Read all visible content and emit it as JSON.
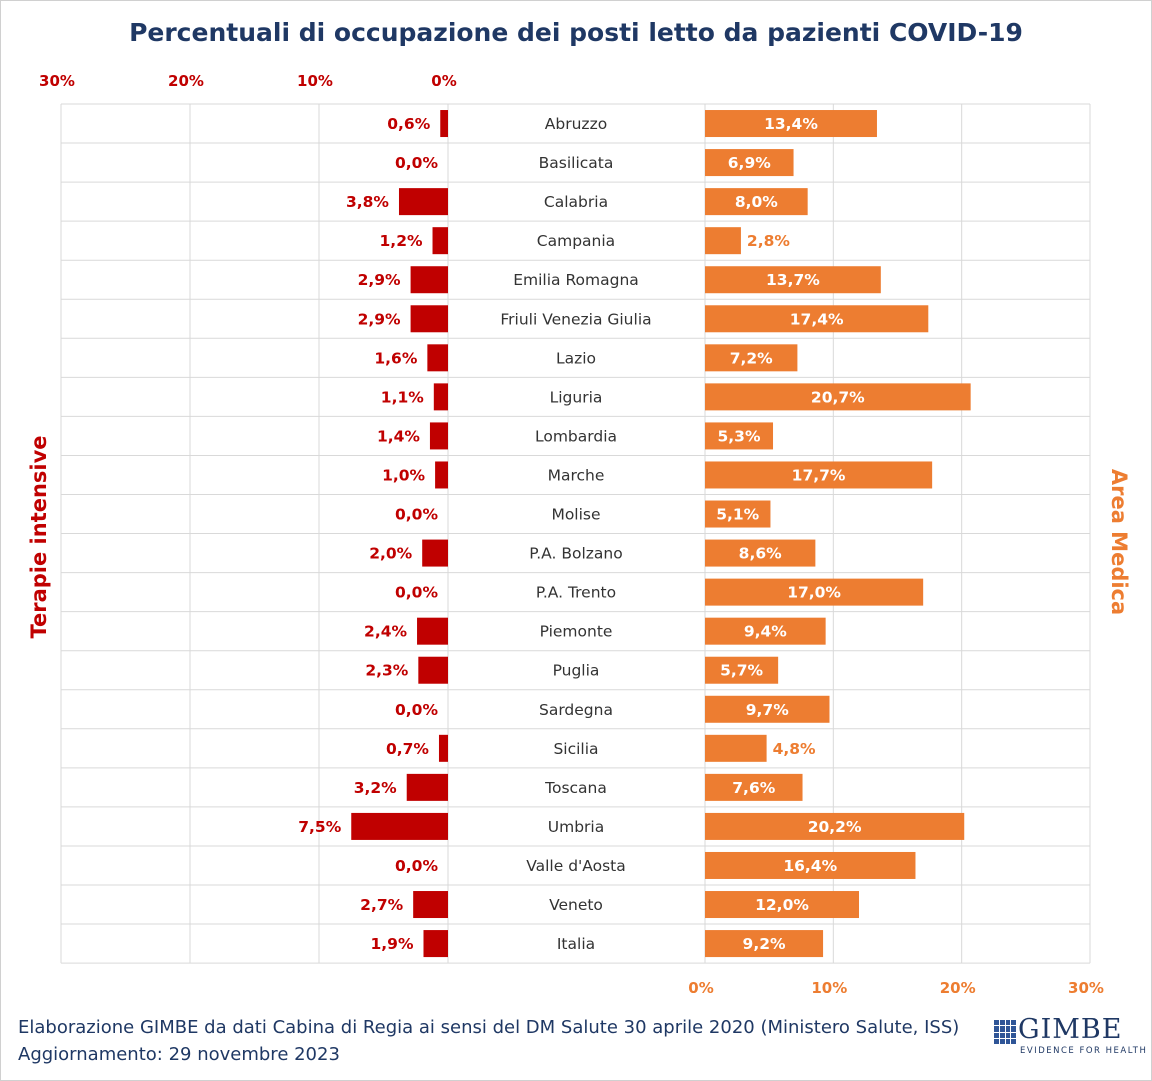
{
  "title": "Percentuali di occupazione dei posti letto da pazienti COVID-19",
  "footer": {
    "line1": "Elaborazione GIMBE da dati Cabina di Regia ai sensi del DM Salute 30 aprile 2020 (Ministero Salute, ISS)",
    "line2": "Aggiornamento: 29 novembre 2023"
  },
  "logo": {
    "name": "GIMBE",
    "tagline": "EVIDENCE FOR HEALTH",
    "icon": "gimbe-grid-icon"
  },
  "colors": {
    "left": "#c00000",
    "right": "#ed7d31",
    "title": "#1f3864",
    "grid": "#d9d9d9"
  },
  "chart_data": {
    "type": "bar",
    "orientation": "horizontal-butterfly",
    "title": "Percentuali di occupazione dei posti letto da pazienti COVID-19",
    "categories": [
      "Abruzzo",
      "Basilicata",
      "Calabria",
      "Campania",
      "Emilia Romagna",
      "Friuli Venezia Giulia",
      "Lazio",
      "Liguria",
      "Lombardia",
      "Marche",
      "Molise",
      "P.A. Bolzano",
      "P.A. Trento",
      "Piemonte",
      "Puglia",
      "Sardegna",
      "Sicilia",
      "Toscana",
      "Umbria",
      "Valle d'Aosta",
      "Veneto",
      "Italia"
    ],
    "series": [
      {
        "name": "Terapie intensive",
        "side": "left",
        "values": [
          0.6,
          0.0,
          3.8,
          1.2,
          2.9,
          2.9,
          1.6,
          1.1,
          1.4,
          1.0,
          0.0,
          2.0,
          0.0,
          2.4,
          2.3,
          0.0,
          0.7,
          3.2,
          7.5,
          0.0,
          2.7,
          1.9
        ],
        "labels": [
          "0,6%",
          "0,0%",
          "3,8%",
          "1,2%",
          "2,9%",
          "2,9%",
          "1,6%",
          "1,1%",
          "1,4%",
          "1,0%",
          "0,0%",
          "2,0%",
          "0,0%",
          "2,4%",
          "2,3%",
          "0,0%",
          "0,7%",
          "3,2%",
          "7,5%",
          "0,0%",
          "2,7%",
          "1,9%"
        ]
      },
      {
        "name": "Area Medica",
        "side": "right",
        "values": [
          13.4,
          6.9,
          8.0,
          2.8,
          13.7,
          17.4,
          7.2,
          20.7,
          5.3,
          17.7,
          5.1,
          8.6,
          17.0,
          9.4,
          5.7,
          9.7,
          4.8,
          7.6,
          20.2,
          16.4,
          12.0,
          9.2
        ],
        "labels": [
          "13,4%",
          "6,9%",
          "8,0%",
          "2,8%",
          "13,7%",
          "17,4%",
          "7,2%",
          "20,7%",
          "5,3%",
          "17,7%",
          "5,1%",
          "8,6%",
          "17,0%",
          "9,4%",
          "5,7%",
          "9,7%",
          "4,8%",
          "7,6%",
          "20,2%",
          "16,4%",
          "12,0%",
          "9,2%"
        ]
      }
    ],
    "left_axis": {
      "ticks": [
        30,
        20,
        10,
        0
      ],
      "tick_labels": [
        "30%",
        "20%",
        "10%",
        "0%"
      ],
      "range": [
        0,
        30
      ],
      "position": "top"
    },
    "right_axis": {
      "ticks": [
        0,
        10,
        20,
        30
      ],
      "tick_labels": [
        "0%",
        "10%",
        "20%",
        "30%"
      ],
      "range": [
        0,
        30
      ],
      "position": "bottom"
    },
    "grid": true,
    "legend": "none"
  }
}
